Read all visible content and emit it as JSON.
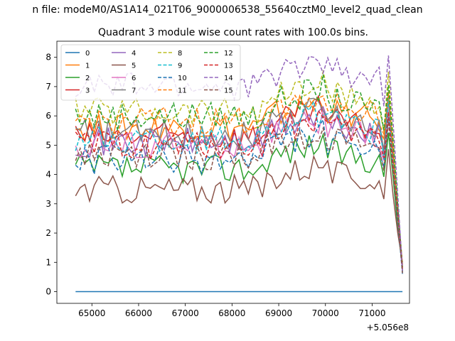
{
  "chart_data": {
    "type": "line",
    "suptitle": "n file: modeM0/AS1A14_021T06_9000006538_55640cztM0_level2_quad_clean",
    "title": "Quadrant 3 module wise count rates with 100.0s bins.",
    "xlabel": "",
    "ylabel": "",
    "x_offset_label": "+5.056e8",
    "xlim": [
      64250,
      71800
    ],
    "ylim": [
      -0.4,
      8.55
    ],
    "x_ticks": [
      65000,
      66000,
      67000,
      68000,
      69000,
      70000,
      71000
    ],
    "x_tick_labels": [
      "65000",
      "66000",
      "67000",
      "68000",
      "69000",
      "70000",
      "71000"
    ],
    "y_ticks": [
      0,
      1,
      2,
      3,
      4,
      5,
      6,
      7,
      8
    ],
    "y_tick_labels": [
      "0",
      "1",
      "2",
      "3",
      "4",
      "5",
      "6",
      "7",
      "8"
    ],
    "grid": false,
    "legend": {
      "placement": "top-left",
      "columns": 4
    },
    "x_range": {
      "start": 64650,
      "step": 100,
      "count": 71
    },
    "series": [
      {
        "name": "0",
        "color": "#1f77b4",
        "dash": "solid",
        "shape": "flat",
        "values": [
          0
        ]
      },
      {
        "name": "1",
        "color": "#ff7f0e",
        "dash": "solid",
        "shape": "A",
        "base": 5.6
      },
      {
        "name": "2",
        "color": "#2ca02c",
        "dash": "solid",
        "shape": "A",
        "base": 4.2
      },
      {
        "name": "3",
        "color": "#d62728",
        "dash": "solid",
        "shape": "A",
        "base": 5.3
      },
      {
        "name": "4",
        "color": "#9467bd",
        "dash": "solid",
        "shape": "A",
        "base": 5.1
      },
      {
        "name": "5",
        "color": "#8c564b",
        "dash": "solid",
        "shape": "A",
        "base": 3.5
      },
      {
        "name": "6",
        "color": "#e377c2",
        "dash": "solid",
        "shape": "A",
        "base": 5.0
      },
      {
        "name": "7",
        "color": "#7f7f7f",
        "dash": "solid",
        "shape": "A",
        "base": 5.4
      },
      {
        "name": "8",
        "color": "#bcbd22",
        "dash": "dashed",
        "shape": "A",
        "base": 6.2
      },
      {
        "name": "9",
        "color": "#17becf",
        "dash": "dashed",
        "shape": "A",
        "base": 5.2
      },
      {
        "name": "10",
        "color": "#1f77b4",
        "dash": "dashed",
        "shape": "A",
        "base": 4.5
      },
      {
        "name": "11",
        "color": "#ff7f0e",
        "dash": "dashed",
        "shape": "A",
        "base": 5.8
      },
      {
        "name": "12",
        "color": "#2ca02c",
        "dash": "dashed",
        "shape": "A",
        "base": 6.0
      },
      {
        "name": "13",
        "color": "#d62728",
        "dash": "dashed",
        "shape": "A",
        "base": 5.0
      },
      {
        "name": "14",
        "color": "#9467bd",
        "dash": "dashed",
        "shape": "A",
        "base": 7.0
      },
      {
        "name": "15",
        "color": "#8c564b",
        "dash": "dashed",
        "shape": "A",
        "base": 4.6
      }
    ]
  }
}
